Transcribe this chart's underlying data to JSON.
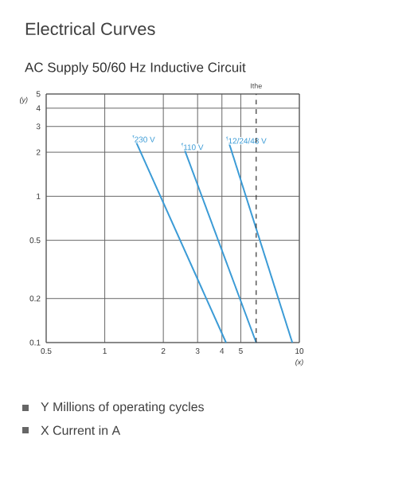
{
  "chart_data": {
    "type": "line",
    "title": "Electrical Curves",
    "subtitle": "AC Supply 50/60 Hz Inductive Circuit",
    "xlabel": "(x)",
    "ylabel": "(y)",
    "log": "xy",
    "grid": true,
    "legend": false,
    "marker": "none",
    "line_style": "solid",
    "xlim": [
      0.5,
      10
    ],
    "ylim": [
      0.1,
      5
    ],
    "xticks": [
      0.5,
      1,
      2,
      3,
      4,
      5,
      10
    ],
    "yticks": [
      0.1,
      0.2,
      0.5,
      1,
      2,
      3,
      4,
      5
    ],
    "series": [
      {
        "name": "230 V",
        "color": "#3b9bd6",
        "x": [
          1.4,
          4.2
        ],
        "values": [
          2.6,
          0.1
        ]
      },
      {
        "name": "110 V",
        "color": "#3b9bd6",
        "x": [
          2.5,
          6.0
        ],
        "values": [
          2.3,
          0.1
        ]
      },
      {
        "name": "12/24/48 V",
        "color": "#3b9bd6",
        "x": [
          4.25,
          9.2
        ],
        "values": [
          2.55,
          0.1
        ]
      }
    ],
    "ref_lines": [
      {
        "axis": "x",
        "value": 6,
        "label": "Ithe",
        "color": "#333333",
        "line_style": "dashed"
      }
    ],
    "annotations": [
      "Y Millions of operating cycles",
      "X Current in A"
    ]
  }
}
